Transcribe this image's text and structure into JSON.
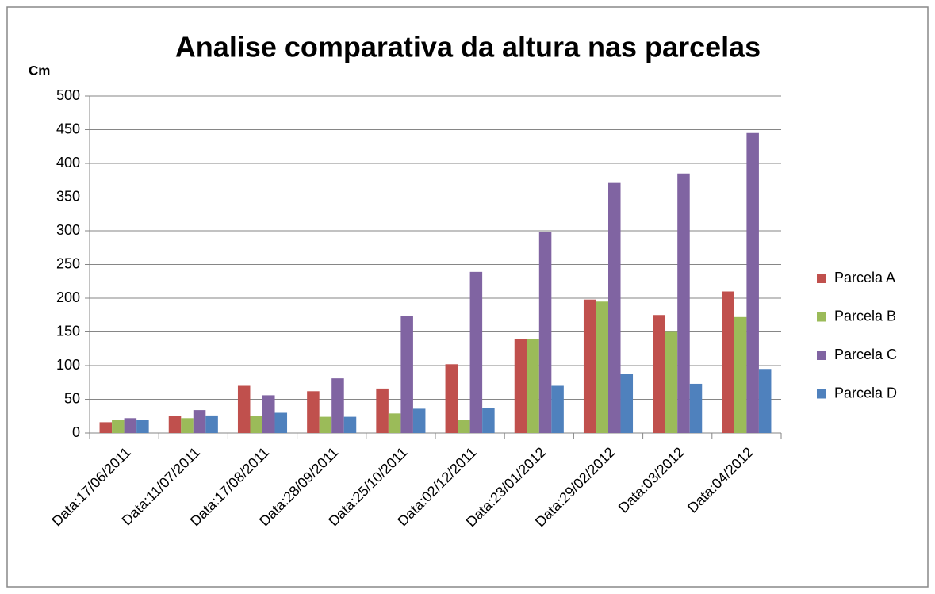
{
  "chart_data": {
    "type": "bar",
    "title": "Analise comparativa da altura nas parcelas",
    "y_label": "Cm",
    "categories": [
      "Data:17/06/2011",
      "Data:11/07/2011",
      "Data:17/08/2011",
      "Data:28/09/2011",
      "Data:25/10/2011",
      "Data:02/12/2011",
      "Data:23/01/2012",
      "Data:29/02/2012",
      "Data:03/2012",
      "Data:04/2012"
    ],
    "series": [
      {
        "name": "Parcela A",
        "color": "#c0504d",
        "values": [
          16,
          25,
          70,
          62,
          66,
          102,
          140,
          198,
          175,
          210
        ]
      },
      {
        "name": "Parcela B",
        "color": "#9bbb59",
        "values": [
          19,
          22,
          25,
          24,
          29,
          20,
          140,
          195,
          150,
          172
        ]
      },
      {
        "name": "Parcela C",
        "color": "#8064a2",
        "values": [
          22,
          34,
          56,
          81,
          174,
          239,
          298,
          371,
          385,
          445
        ]
      },
      {
        "name": "Parcela D",
        "color": "#4f81bd",
        "values": [
          20,
          26,
          30,
          24,
          36,
          37,
          70,
          88,
          73,
          95
        ]
      }
    ],
    "ylim": [
      0,
      500
    ],
    "yticks": [
      0,
      50,
      100,
      150,
      200,
      250,
      300,
      350,
      400,
      450,
      500
    ],
    "grid": true,
    "legend": "right"
  }
}
